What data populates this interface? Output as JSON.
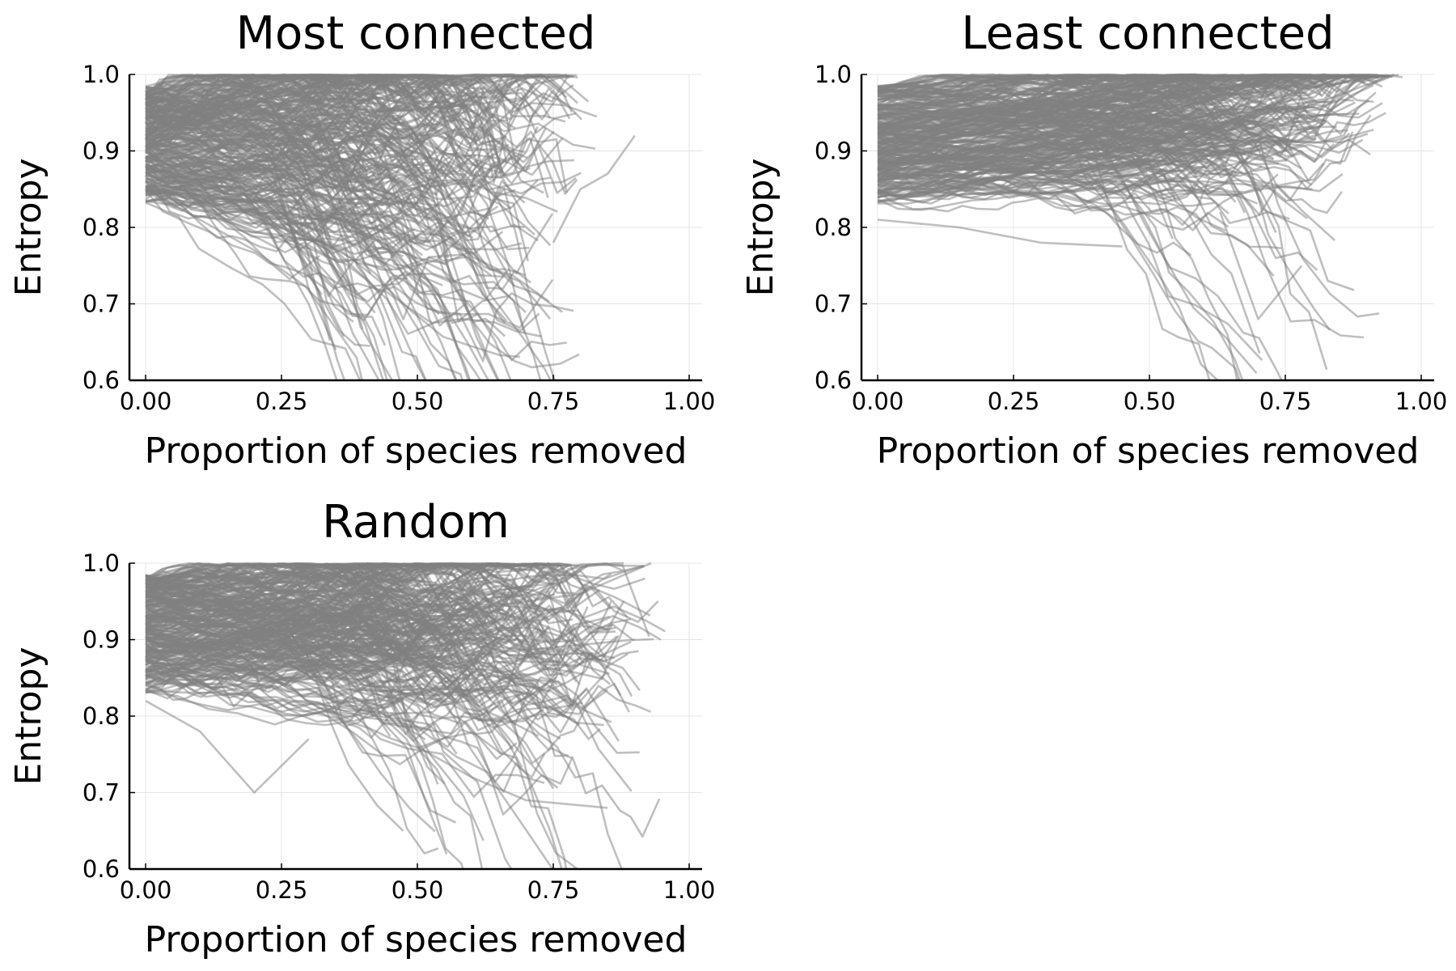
{
  "chart_data": [
    {
      "type": "line",
      "title": "Most connected",
      "xlabel": "Proportion of species removed",
      "ylabel": "Entropy",
      "xlim": [
        0,
        1
      ],
      "ylim": [
        0.6,
        1.0
      ],
      "xticks": [
        "0.00",
        "0.25",
        "0.50",
        "0.75",
        "1.00"
      ],
      "yticks": [
        "0.6",
        "0.7",
        "0.8",
        "0.9",
        "1.0"
      ],
      "grid": true,
      "legend": "none",
      "line_color": "#808080",
      "series_count": 300,
      "representative_series": [
        {
          "x": [
            0.0,
            0.1,
            0.2,
            0.3,
            0.4,
            0.5,
            0.6,
            0.7
          ],
          "y": [
            0.93,
            0.935,
            0.94,
            0.945,
            0.95,
            0.955,
            0.96,
            0.97
          ]
        },
        {
          "x": [
            0.0,
            0.1,
            0.2,
            0.3,
            0.4,
            0.5
          ],
          "y": [
            0.88,
            0.86,
            0.84,
            0.82,
            0.79,
            0.76
          ]
        },
        {
          "x": [
            0.0,
            0.1,
            0.2,
            0.3,
            0.35
          ],
          "y": [
            0.85,
            0.81,
            0.77,
            0.72,
            0.64
          ]
        },
        {
          "x": [
            0.75,
            0.8,
            0.85,
            0.9
          ],
          "y": [
            0.78,
            0.85,
            0.87,
            0.92
          ]
        }
      ]
    },
    {
      "type": "line",
      "title": "Least connected",
      "xlabel": "Proportion of species removed",
      "ylabel": "Entropy",
      "xlim": [
        0,
        1
      ],
      "ylim": [
        0.6,
        1.0
      ],
      "xticks": [
        "0.00",
        "0.25",
        "0.50",
        "0.75",
        "1.00"
      ],
      "yticks": [
        "0.6",
        "0.7",
        "0.8",
        "0.9",
        "1.0"
      ],
      "grid": true,
      "legend": "none",
      "line_color": "#808080",
      "series_count": 300,
      "representative_series": [
        {
          "x": [
            0.0,
            0.2,
            0.4,
            0.6,
            0.8,
            0.95
          ],
          "y": [
            0.92,
            0.925,
            0.935,
            0.945,
            0.96,
            1.0
          ]
        },
        {
          "x": [
            0.0,
            0.2,
            0.4,
            0.6,
            0.8
          ],
          "y": [
            0.84,
            0.85,
            0.86,
            0.86,
            0.85
          ]
        },
        {
          "x": [
            0.0,
            0.15,
            0.3,
            0.45
          ],
          "y": [
            0.81,
            0.8,
            0.78,
            0.775
          ]
        },
        {
          "x": [
            0.63,
            0.7,
            0.78
          ],
          "y": [
            0.82,
            0.68,
            0.75
          ]
        }
      ]
    },
    {
      "type": "line",
      "title": "Random",
      "xlabel": "Proportion of species removed",
      "ylabel": "Entropy",
      "xlim": [
        0,
        1
      ],
      "ylim": [
        0.6,
        1.0
      ],
      "xticks": [
        "0.00",
        "0.25",
        "0.50",
        "0.75",
        "1.00"
      ],
      "yticks": [
        "0.6",
        "0.7",
        "0.8",
        "0.9",
        "1.0"
      ],
      "grid": true,
      "legend": "none",
      "line_color": "#808080",
      "series_count": 300,
      "representative_series": [
        {
          "x": [
            0.0,
            0.2,
            0.4,
            0.6,
            0.8,
            0.93
          ],
          "y": [
            0.93,
            0.93,
            0.935,
            0.94,
            0.96,
            1.0
          ]
        },
        {
          "x": [
            0.0,
            0.2,
            0.4,
            0.6,
            0.75,
            0.9
          ],
          "y": [
            0.87,
            0.86,
            0.87,
            0.88,
            0.89,
            0.9
          ]
        },
        {
          "x": [
            0.0,
            0.1,
            0.2,
            0.3
          ],
          "y": [
            0.82,
            0.78,
            0.7,
            0.77
          ]
        },
        {
          "x": [
            0.5,
            0.6,
            0.7,
            0.85
          ],
          "y": [
            0.76,
            0.72,
            0.69,
            0.68
          ]
        }
      ]
    }
  ]
}
